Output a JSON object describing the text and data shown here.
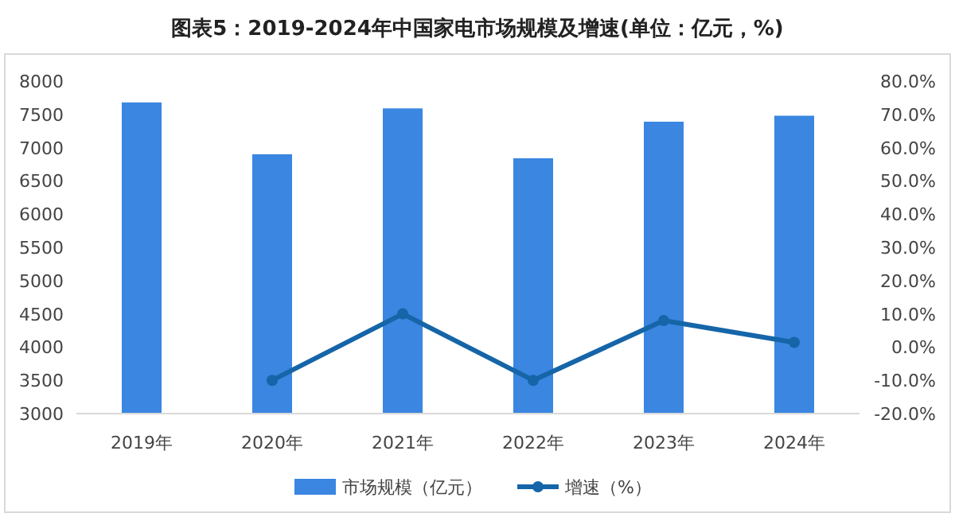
{
  "chart_data": {
    "type": "bar",
    "title": "图表5：2019-2024年中国家电市场规模及增速(单位：亿元，%)",
    "categories": [
      "2019年",
      "2020年",
      "2021年",
      "2022年",
      "2023年",
      "2024年"
    ],
    "series": [
      {
        "name": "市场规模（亿元）",
        "color": "#3a86e0",
        "values": [
          7680,
          6900,
          7590,
          6840,
          7390,
          7480
        ]
      },
      {
        "name": "增速（%）",
        "type": "line",
        "axis": "y2",
        "color": "#1565a8",
        "marker": "circle",
        "values": [
          null,
          -10,
          10,
          -10,
          8,
          1.4
        ]
      }
    ],
    "ylim": [
      3000,
      8000
    ],
    "yticks": [
      3000,
      3500,
      4000,
      4500,
      5000,
      5500,
      6000,
      6500,
      7000,
      7500,
      8000
    ],
    "y2lim": [
      -20,
      80
    ],
    "y2ticks": [
      {
        "value": -20,
        "label": "-20.0%"
      },
      {
        "value": -10,
        "label": "-10.0%"
      },
      {
        "value": 0,
        "label": "0.0%"
      },
      {
        "value": 10,
        "label": "10.0%"
      },
      {
        "value": 20,
        "label": "20.0%"
      },
      {
        "value": 30,
        "label": "30.0%"
      },
      {
        "value": 40,
        "label": "40.0%"
      },
      {
        "value": 50,
        "label": "50.0%"
      },
      {
        "value": 60,
        "label": "60.0%"
      },
      {
        "value": 70,
        "label": "70.0%"
      },
      {
        "value": 80,
        "label": "80.0%"
      }
    ],
    "grid": false,
    "legend": "bottom"
  }
}
